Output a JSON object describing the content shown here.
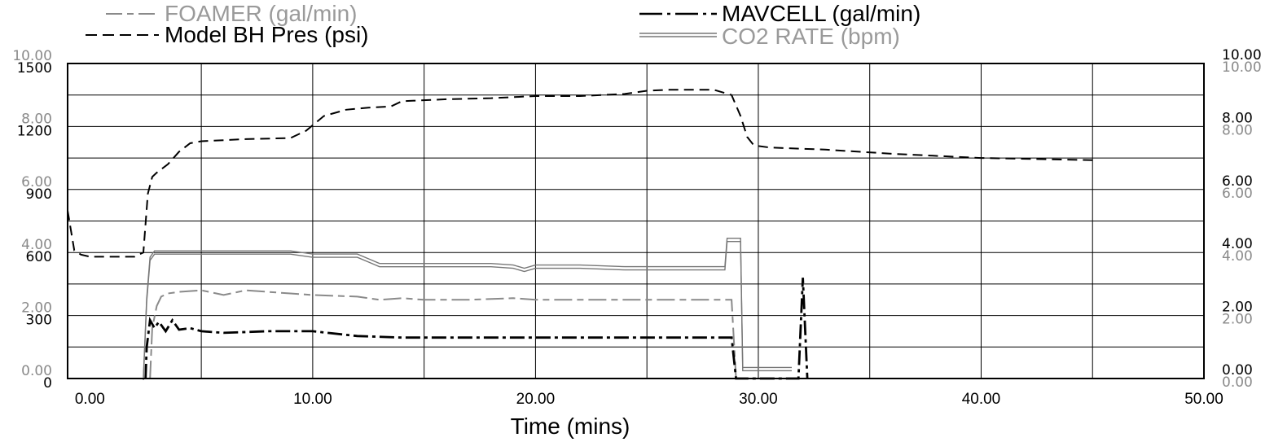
{
  "chart_data": {
    "type": "line",
    "title": "",
    "xlabel": "Time (mins)",
    "xlim": [
      -1.0,
      50.0
    ],
    "x_ticks": [
      "0.00",
      "10.00",
      "20.00",
      "30.00",
      "40.00",
      "50.00"
    ],
    "left_axis": {
      "outer_ticks": [
        "0.00",
        "2.00",
        "4.00",
        "6.00",
        "8.00",
        "10.00"
      ],
      "inner_ticks": [
        "0",
        "300",
        "600",
        "900",
        "1200",
        "1500"
      ],
      "inner_range": [
        0,
        1500
      ],
      "outer_range": [
        0,
        10
      ]
    },
    "right_axis": {
      "upper_ticks": [
        "0.00",
        "2.00",
        "4.00",
        "6.00",
        "8.00",
        "10.00"
      ],
      "lower_ticks": [
        "0.00",
        "2.00",
        "4.00",
        "6.00",
        "8.00",
        "10.00"
      ],
      "range": [
        0,
        10
      ]
    },
    "grid": true,
    "legend_position": "top",
    "series": [
      {
        "name": "FOAMER (gal/min)",
        "color": "#8a8a8a",
        "style": "long-dash-light",
        "axis_range": [
          0,
          10
        ],
        "x": [
          2.7,
          2.8,
          3.0,
          3.2,
          3.5,
          4.0,
          5.0,
          6.0,
          7.0,
          8.0,
          9.0,
          10.0,
          12.0,
          13.0,
          14.0,
          15.0,
          17.0,
          19.0,
          20.0,
          22.0,
          24.0,
          26.0,
          28.0,
          28.6,
          28.8,
          29.0
        ],
        "y": [
          0.0,
          1.6,
          2.3,
          2.6,
          2.7,
          2.75,
          2.8,
          2.65,
          2.8,
          2.75,
          2.7,
          2.65,
          2.6,
          2.5,
          2.55,
          2.5,
          2.5,
          2.55,
          2.5,
          2.5,
          2.5,
          2.5,
          2.5,
          2.5,
          2.5,
          0.0
        ]
      },
      {
        "name": "MAVCELL (gal/min)",
        "color": "#000000",
        "style": "dash-dot",
        "axis_range": [
          0,
          10
        ],
        "x": [
          2.5,
          2.55,
          2.7,
          2.9,
          3.1,
          3.4,
          3.7,
          4.0,
          4.5,
          5.0,
          6.0,
          8.0,
          10.0,
          12.0,
          14.0,
          16.0,
          18.0,
          20.0,
          22.0,
          24.0,
          26.0,
          28.0,
          28.5,
          28.8,
          29.0,
          31.8,
          32.0,
          32.2
        ],
        "y": [
          0.0,
          1.0,
          1.85,
          1.6,
          1.8,
          1.5,
          1.85,
          1.55,
          1.6,
          1.5,
          1.45,
          1.5,
          1.5,
          1.35,
          1.3,
          1.3,
          1.3,
          1.3,
          1.3,
          1.3,
          1.3,
          1.3,
          1.3,
          1.3,
          0.0,
          0.0,
          3.2,
          0.0
        ]
      },
      {
        "name": "Model BH Pres (psi)",
        "color": "#000000",
        "style": "dash",
        "axis_range": [
          0,
          1500
        ],
        "x": [
          -1.0,
          -0.7,
          -0.4,
          0.0,
          1.0,
          2.0,
          2.4,
          2.6,
          2.8,
          3.0,
          3.5,
          4.0,
          4.5,
          5.0,
          7.0,
          9.0,
          9.7,
          10.5,
          11.5,
          12.5,
          13.5,
          14.0,
          16.0,
          18.0,
          20.0,
          22.0,
          24.0,
          25.0,
          26.0,
          28.0,
          28.8,
          29.2,
          29.5,
          29.8,
          30.5,
          33.0,
          36.0,
          40.0,
          45.0
        ],
        "y": [
          800,
          610,
          590,
          580,
          580,
          580,
          600,
          880,
          960,
          980,
          1020,
          1080,
          1120,
          1130,
          1140,
          1145,
          1180,
          1250,
          1280,
          1290,
          1295,
          1320,
          1330,
          1335,
          1345,
          1345,
          1355,
          1370,
          1375,
          1375,
          1350,
          1250,
          1150,
          1110,
          1100,
          1090,
          1070,
          1050,
          1040
        ]
      },
      {
        "name": "CO2 RATE (bpm)",
        "color": "#777777",
        "style": "double-solid",
        "axis_range": [
          0,
          10
        ],
        "x": [
          2.4,
          2.55,
          2.7,
          2.9,
          3.2,
          4.0,
          6.0,
          8.0,
          9.0,
          10.0,
          12.0,
          12.5,
          13.0,
          14.0,
          16.0,
          18.0,
          19.0,
          19.5,
          20.0,
          22.0,
          24.0,
          26.0,
          28.0,
          28.5,
          28.6,
          29.0,
          29.2,
          29.3,
          29.5,
          31.5
        ],
        "y": [
          0.0,
          2.5,
          3.8,
          4.0,
          4.0,
          4.0,
          4.0,
          4.0,
          4.0,
          3.9,
          3.9,
          3.75,
          3.6,
          3.6,
          3.6,
          3.6,
          3.55,
          3.45,
          3.55,
          3.55,
          3.5,
          3.5,
          3.5,
          3.5,
          4.4,
          4.4,
          4.4,
          0.3,
          0.3,
          0.3
        ]
      }
    ]
  }
}
